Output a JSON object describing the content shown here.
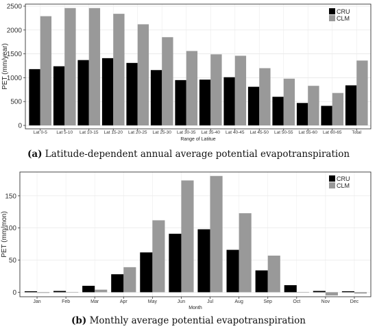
{
  "charts": [
    {
      "caption_label": "(a)",
      "caption_text": "Latitude-dependent annual average potential evapotranspiration"
    },
    {
      "caption_label": "(b)",
      "caption_text": "Monthly average potential evapotranspiration"
    }
  ],
  "chart_data": [
    {
      "type": "bar",
      "xlabel": "Range of Latitue",
      "ylabel": "PET (mm/year)",
      "ylim": [
        0,
        2500
      ],
      "yticks": [
        0,
        500,
        1000,
        1500,
        2000,
        2500
      ],
      "grid": true,
      "legend_position": "top-right",
      "categories": [
        "Lat 0-5",
        "Lat 5-10",
        "Lat 10-15",
        "Lat 15-20",
        "Lat 20-25",
        "Lat 25-30",
        "Lat 30-35",
        "Lat 35-40",
        "Lat 40-45",
        "Lat 45-50",
        "Lat 50-55",
        "Lat 55-60",
        "Lat 60-65",
        "Total"
      ],
      "series": [
        {
          "name": "CRU",
          "color": "#000000",
          "values": [
            1180,
            1240,
            1370,
            1410,
            1310,
            1160,
            950,
            960,
            1010,
            810,
            600,
            470,
            410,
            840
          ]
        },
        {
          "name": "CLM",
          "color": "#999999",
          "values": [
            2290,
            2460,
            2460,
            2340,
            2120,
            1850,
            1560,
            1490,
            1460,
            1200,
            980,
            830,
            680,
            1360
          ]
        }
      ]
    },
    {
      "type": "bar",
      "xlabel": "Month",
      "ylabel": "PET (mm/mon)",
      "ylim": [
        -7,
        185
      ],
      "yticks": [
        0,
        50,
        100,
        150
      ],
      "grid": true,
      "legend_position": "top-right",
      "categories": [
        "Jan",
        "Feb",
        "Mar",
        "Apr",
        "May",
        "Jun",
        "Jul",
        "Aug",
        "Sep",
        "Oct",
        "Nov",
        "Dec"
      ],
      "series": [
        {
          "name": "CRU",
          "color": "#000000",
          "values": [
            1.5,
            2,
            10,
            28,
            62,
            91,
            98,
            66,
            34,
            11,
            2,
            1.5
          ]
        },
        {
          "name": "CLM",
          "color": "#999999",
          "values": [
            -1,
            -0.5,
            4,
            39,
            112,
            174,
            181,
            123,
            57,
            0,
            -5,
            -2
          ]
        }
      ]
    }
  ]
}
